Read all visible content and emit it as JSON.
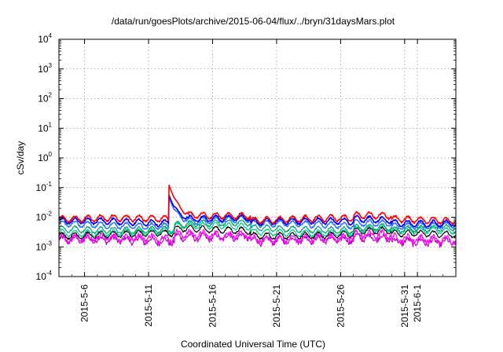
{
  "chart_data": {
    "type": "line",
    "title": "/data/run/goesPlots/archive/2015-06-04/flux/../bryn/31daysMars.plot",
    "xlabel": "Coordinated Universal Time (UTC)",
    "ylabel": "cSv/day",
    "y_scale": "log",
    "ylim": [
      0.0001,
      10000
    ],
    "y_ticks": [
      {
        "value": 0.0001,
        "base": "10",
        "exp": "-4"
      },
      {
        "value": 0.001,
        "base": "10",
        "exp": "-3"
      },
      {
        "value": 0.01,
        "base": "10",
        "exp": "-2"
      },
      {
        "value": 0.1,
        "base": "10",
        "exp": "-1"
      },
      {
        "value": 1,
        "base": "10",
        "exp": "0"
      },
      {
        "value": 10,
        "base": "10",
        "exp": "1"
      },
      {
        "value": 100,
        "base": "10",
        "exp": "2"
      },
      {
        "value": 1000,
        "base": "10",
        "exp": "3"
      },
      {
        "value": 10000,
        "base": "10",
        "exp": "4"
      }
    ],
    "xlim": [
      "2015-05-04",
      "2015-06-04"
    ],
    "x_ticks": [
      "2015-5-6",
      "2015-5-11",
      "2015-5-16",
      "2015-5-21",
      "2015-5-26",
      "2015-5-31",
      "2015-6-1"
    ],
    "grid": true,
    "legend": "none",
    "series_colors": [
      "#ff0000",
      "#0000ff",
      "#3377ff",
      "#00a070",
      "#00cc88",
      "#000000",
      "#ff00ff",
      "#cc00cc"
    ],
    "series_base_values": [
      0.0085,
      0.0068,
      0.0055,
      0.004,
      0.0032,
      0.0026,
      0.0019,
      0.0016
    ],
    "spike": {
      "date": "2015-05-12",
      "values": [
        0.12,
        0.055,
        0.045
      ]
    },
    "seed": 12345
  }
}
